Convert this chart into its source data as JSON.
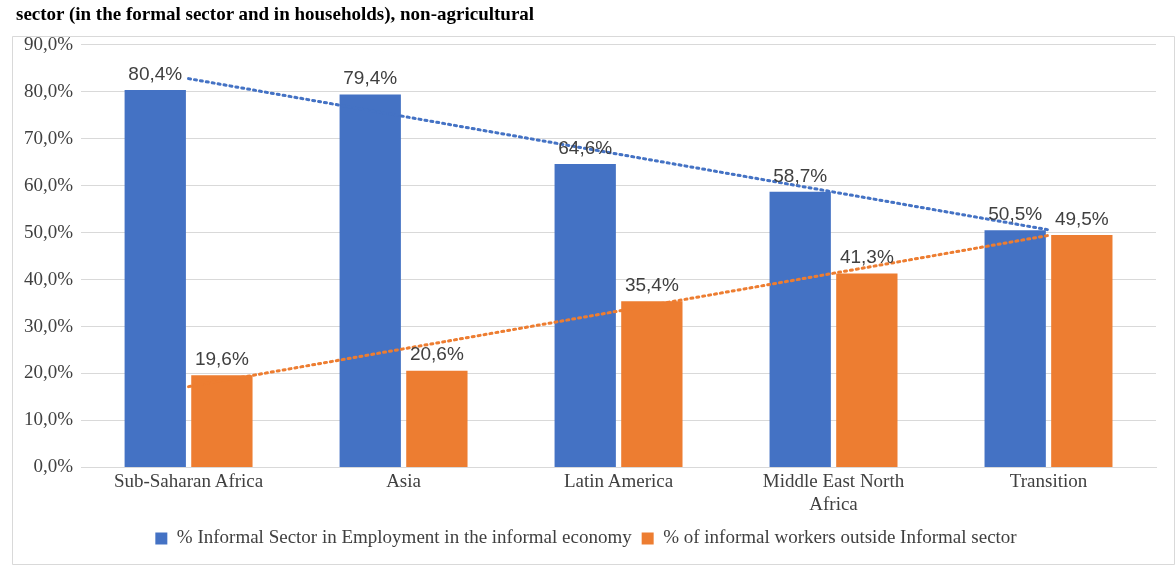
{
  "chart_data": {
    "type": "bar",
    "title": "sector (in the formal sector and in households), non-agricultural",
    "categories": [
      "Sub-Saharan Africa",
      "Asia",
      "Latin America",
      "Middle East North Africa",
      "Transition"
    ],
    "series": [
      {
        "name": "% Informal Sector in Employment in the informal economy",
        "color": "#4472c4",
        "values": [
          80.4,
          79.4,
          64.6,
          58.7,
          50.5
        ],
        "value_labels": [
          "80,4%",
          "79,4%",
          "64,6%",
          "58,7%",
          "50,5%"
        ]
      },
      {
        "name": "% of informal workers outside Informal sector",
        "color": "#ed7d31",
        "values": [
          19.6,
          20.6,
          35.4,
          41.3,
          49.5
        ],
        "value_labels": [
          "19,6%",
          "20,6%",
          "35,4%",
          "41,3%",
          "49,5%"
        ]
      },
      {
        "type": "line",
        "color": "#4472c4",
        "line_style": "dotted",
        "x": [
          "Sub-Saharan Africa",
          "Transition"
        ],
        "values": [
          82.8,
          50.6
        ]
      },
      {
        "type": "line",
        "color": "#ed7d31",
        "line_style": "dotted",
        "x": [
          "Sub-Saharan Africa",
          "Transition"
        ],
        "values": [
          17.2,
          49.4
        ]
      }
    ],
    "ylim": [
      0,
      90
    ],
    "yticks": [
      {
        "value": 0,
        "label": "0,0%"
      },
      {
        "value": 10,
        "label": "10,0%"
      },
      {
        "value": 20,
        "label": "20,0%"
      },
      {
        "value": 30,
        "label": "30,0%"
      },
      {
        "value": 40,
        "label": "40,0%"
      },
      {
        "value": 50,
        "label": "50,0%"
      },
      {
        "value": 60,
        "label": "60,0%"
      },
      {
        "value": 70,
        "label": "70,0%"
      },
      {
        "value": 80,
        "label": "80,0%"
      },
      {
        "value": 90,
        "label": "90,0%"
      }
    ],
    "grid": "y",
    "legend": "bottom",
    "marker": "none"
  }
}
